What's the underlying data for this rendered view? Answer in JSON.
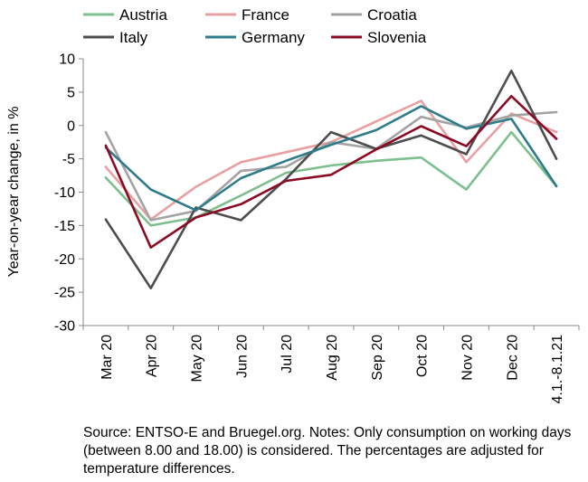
{
  "chart_data": {
    "type": "line",
    "categories": [
      "Mar 20",
      "Apr 20",
      "May 20",
      "Jun 20",
      "Jul 20",
      "Aug 20",
      "Sep 20",
      "Oct 20",
      "Nov 20",
      "Dec 20",
      "4.1.-8.1.21"
    ],
    "ylabel": "Year-on-year change, in %",
    "ylim": [
      -30,
      10
    ],
    "yticks": [
      10,
      5,
      0,
      -5,
      -10,
      -15,
      -20,
      -25,
      -30
    ],
    "grid": false,
    "legend": "top",
    "series": [
      {
        "name": "Austria",
        "color": "#7dbf8e",
        "values": [
          -7.8,
          -15.0,
          -13.8,
          -10.5,
          -7.1,
          -6.0,
          -5.3,
          -4.8,
          -9.6,
          -1.0,
          -9.1
        ]
      },
      {
        "name": "France",
        "color": "#e8a0a0",
        "values": [
          -6.2,
          -14.1,
          -9.2,
          -5.5,
          -4.0,
          -2.5,
          0.6,
          3.7,
          -5.5,
          1.8,
          -1.0
        ]
      },
      {
        "name": "Croatia",
        "color": "#a3a3a3",
        "values": [
          -1.0,
          -14.2,
          -12.8,
          -6.8,
          -6.2,
          -2.5,
          -3.5,
          1.3,
          -0.3,
          1.5,
          2.0
        ]
      },
      {
        "name": "Italy",
        "color": "#4d4d4d",
        "values": [
          -14.1,
          -24.4,
          -12.3,
          -14.2,
          -8.0,
          -1.0,
          -3.5,
          -1.5,
          -4.3,
          8.2,
          -5.0
        ]
      },
      {
        "name": "Germany",
        "color": "#2e7b8a",
        "values": [
          -3.3,
          -9.6,
          -12.7,
          -7.9,
          -5.3,
          -2.9,
          -0.7,
          2.9,
          -0.5,
          1.0,
          -9.1
        ]
      },
      {
        "name": "Slovenia",
        "color": "#8b0a24",
        "values": [
          -3.0,
          -18.3,
          -13.8,
          -11.8,
          -8.3,
          -7.4,
          -3.6,
          -0.1,
          -3.1,
          4.4,
          -2.0
        ]
      }
    ]
  },
  "source_note": "Source: ENTSO-E and Bruegel.org. Notes: Only consumption on working days (between 8.00 and 18.00) is considered. The percentages are adjusted for temperature differences."
}
